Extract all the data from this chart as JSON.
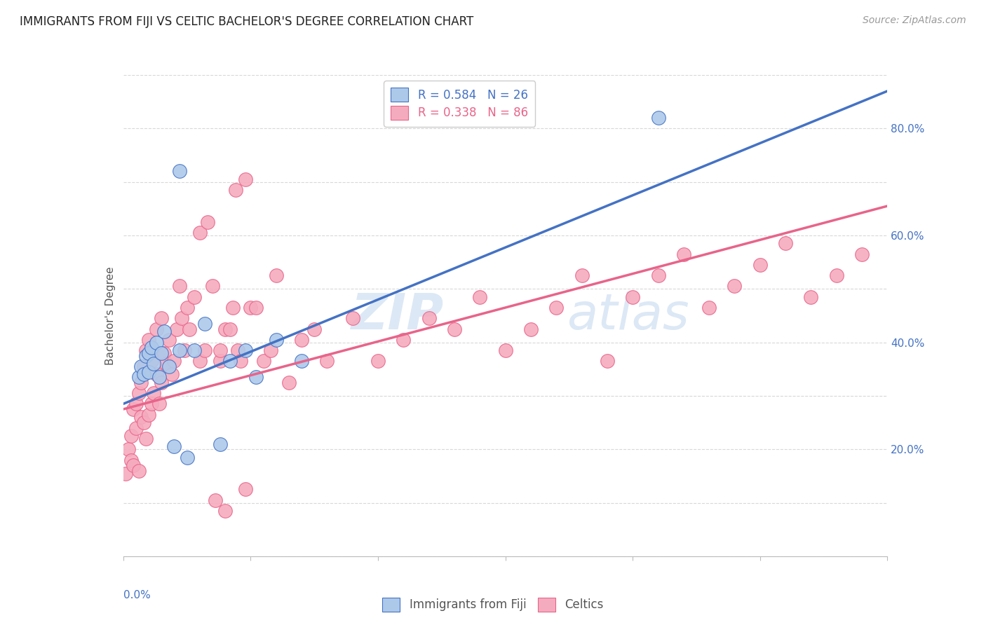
{
  "title": "IMMIGRANTS FROM FIJI VS CELTIC BACHELOR'S DEGREE CORRELATION CHART",
  "source": "Source: ZipAtlas.com",
  "ylabel": "Bachelor's Degree",
  "ylabel_right_ticks": [
    "20.0%",
    "40.0%",
    "60.0%",
    "80.0%"
  ],
  "ylabel_right_vals": [
    0.2,
    0.4,
    0.6,
    0.8
  ],
  "legend_fiji_R": "0.584",
  "legend_fiji_N": "26",
  "legend_celtics_R": "0.338",
  "legend_celtics_N": "86",
  "fiji_color": "#adc9ea",
  "celtics_color": "#f5abbe",
  "fiji_line_color": "#4472c4",
  "celtics_line_color": "#e8648a",
  "background_color": "#ffffff",
  "grid_color": "#d8d8d8",
  "watermark_zip": "ZIP",
  "watermark_atlas": "atlas",
  "watermark_color": "#dce8f5",
  "fiji_scatter_x": [
    0.006,
    0.007,
    0.008,
    0.009,
    0.01,
    0.01,
    0.011,
    0.012,
    0.013,
    0.014,
    0.015,
    0.016,
    0.018,
    0.02,
    0.022,
    0.025,
    0.028,
    0.032,
    0.038,
    0.042,
    0.048,
    0.052,
    0.06,
    0.07,
    0.21,
    0.022
  ],
  "fiji_scatter_y": [
    0.335,
    0.355,
    0.34,
    0.375,
    0.38,
    0.345,
    0.39,
    0.36,
    0.4,
    0.335,
    0.38,
    0.42,
    0.355,
    0.205,
    0.385,
    0.185,
    0.385,
    0.435,
    0.21,
    0.365,
    0.385,
    0.335,
    0.405,
    0.365,
    0.82,
    0.72
  ],
  "celtics_scatter_x": [
    0.001,
    0.002,
    0.003,
    0.003,
    0.004,
    0.004,
    0.005,
    0.005,
    0.006,
    0.006,
    0.007,
    0.007,
    0.008,
    0.008,
    0.009,
    0.009,
    0.01,
    0.01,
    0.011,
    0.011,
    0.012,
    0.012,
    0.013,
    0.013,
    0.014,
    0.015,
    0.015,
    0.016,
    0.017,
    0.018,
    0.019,
    0.02,
    0.021,
    0.022,
    0.023,
    0.024,
    0.025,
    0.026,
    0.028,
    0.03,
    0.032,
    0.035,
    0.038,
    0.04,
    0.043,
    0.045,
    0.048,
    0.05,
    0.055,
    0.06,
    0.065,
    0.07,
    0.075,
    0.08,
    0.09,
    0.1,
    0.11,
    0.12,
    0.13,
    0.14,
    0.15,
    0.16,
    0.17,
    0.18,
    0.19,
    0.2,
    0.21,
    0.22,
    0.23,
    0.24,
    0.25,
    0.26,
    0.27,
    0.28,
    0.29,
    0.038,
    0.042,
    0.046,
    0.052,
    0.058,
    0.03,
    0.033,
    0.036,
    0.04,
    0.044,
    0.048
  ],
  "celtics_scatter_y": [
    0.155,
    0.2,
    0.18,
    0.225,
    0.17,
    0.275,
    0.24,
    0.285,
    0.16,
    0.305,
    0.26,
    0.325,
    0.25,
    0.355,
    0.22,
    0.385,
    0.265,
    0.405,
    0.285,
    0.365,
    0.305,
    0.385,
    0.34,
    0.425,
    0.285,
    0.325,
    0.445,
    0.38,
    0.36,
    0.405,
    0.34,
    0.365,
    0.425,
    0.505,
    0.445,
    0.385,
    0.465,
    0.425,
    0.485,
    0.365,
    0.385,
    0.505,
    0.365,
    0.425,
    0.465,
    0.385,
    0.125,
    0.465,
    0.365,
    0.525,
    0.325,
    0.405,
    0.425,
    0.365,
    0.445,
    0.365,
    0.405,
    0.445,
    0.425,
    0.485,
    0.385,
    0.425,
    0.465,
    0.525,
    0.365,
    0.485,
    0.525,
    0.565,
    0.465,
    0.505,
    0.545,
    0.585,
    0.485,
    0.525,
    0.565,
    0.385,
    0.425,
    0.365,
    0.465,
    0.385,
    0.605,
    0.625,
    0.105,
    0.085,
    0.685,
    0.705
  ],
  "fiji_line_x0": 0.0,
  "fiji_line_x1": 0.3,
  "fiji_line_y0": 0.285,
  "fiji_line_y1": 0.87,
  "celtics_line_x0": 0.0,
  "celtics_line_x1": 0.3,
  "celtics_line_y0": 0.275,
  "celtics_line_y1": 0.655,
  "xlim": [
    0.0,
    0.3
  ],
  "ylim": [
    0.0,
    0.9
  ],
  "title_fontsize": 12,
  "source_fontsize": 10,
  "axis_label_fontsize": 11,
  "tick_fontsize": 11,
  "legend_fontsize": 12,
  "watermark_fontsize_zip": 52,
  "watermark_fontsize_atlas": 52
}
